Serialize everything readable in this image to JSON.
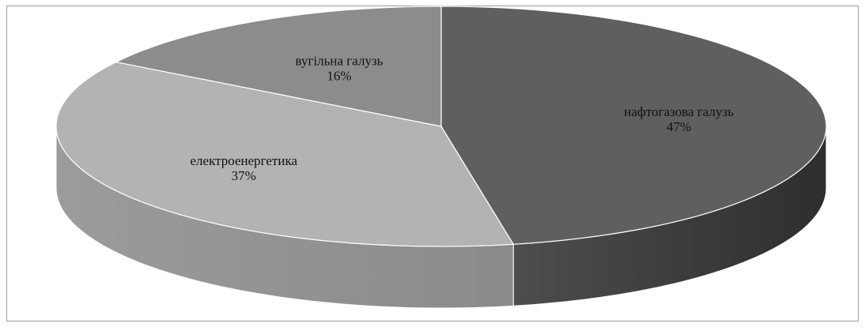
{
  "chart_data": {
    "type": "pie",
    "style": "3d-tilted",
    "title": "",
    "categories": [
      "нафтогазова галузь",
      "електроенергетика",
      "вугільна галузь"
    ],
    "values": [
      47,
      37,
      16
    ],
    "value_labels": [
      "47%",
      "37%",
      "16%"
    ],
    "colors": [
      "#5f5f5f",
      "#b3b3b3",
      "#8c8c8c"
    ],
    "side_colors": [
      "#2e2e2e",
      "#8a8a8a",
      "#6f6f6f"
    ],
    "start": "12 o'clock",
    "direction": "clockwise",
    "legend": "none",
    "labels": "inside slices"
  }
}
